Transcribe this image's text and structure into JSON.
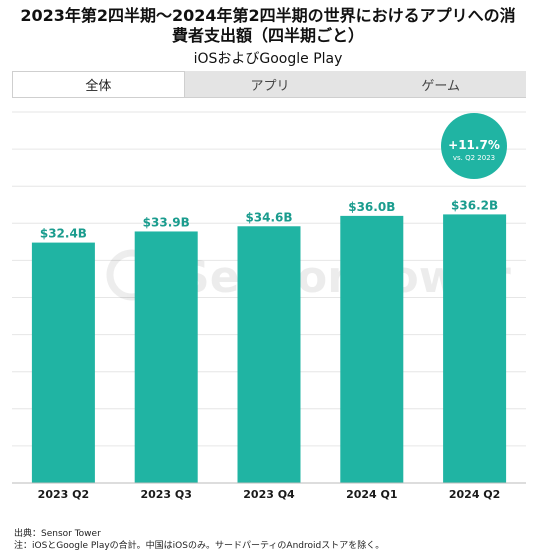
{
  "title_line1": "2023年第2四半期～2024年第2四半期の世界におけるアプリへの消",
  "title_line2": "費者支出額（四半期ごと）",
  "subtitle": "iOSおよびGoogle Play",
  "tabs": [
    {
      "label": "全体",
      "active": true
    },
    {
      "label": "アプリ",
      "active": false
    },
    {
      "label": "ゲーム",
      "active": false
    }
  ],
  "badge": {
    "value": "+11.7%",
    "caption": "vs. Q2 2023"
  },
  "watermark": "Sensor Tower",
  "colors": {
    "bar": "#20b4a3",
    "badge": "#20b4a3",
    "grid": "#e6e6e6",
    "label": "#1a9c8e"
  },
  "chart_data": {
    "type": "bar",
    "categories": [
      "2023 Q2",
      "2023 Q3",
      "2023 Q4",
      "2024 Q1",
      "2024 Q2"
    ],
    "values": [
      32.4,
      33.9,
      34.6,
      36.0,
      36.2
    ],
    "data_labels": [
      "$32.4B",
      "$33.9B",
      "$34.6B",
      "$36.0B",
      "$36.2B"
    ],
    "ylim": [
      0,
      50
    ],
    "grid": true
  },
  "footer": {
    "source": "出典：Sensor Tower",
    "note": "注：iOSとGoogle Playの合計。中国はiOSのみ。サードパーティのAndroidストアを除く。"
  }
}
